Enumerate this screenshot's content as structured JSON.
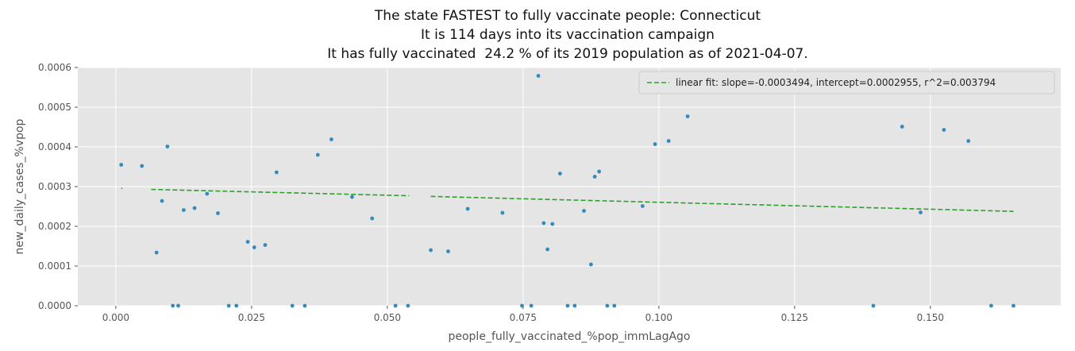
{
  "chart_data": {
    "type": "scatter",
    "title_lines": [
      "The state FASTEST to fully vaccinate people: Connecticut",
      "It is 114 days into its vaccination campaign",
      "It has fully vaccinated  24.2 % of its 2019 population as of 2021-04-07."
    ],
    "xlabel": "people_fully_vaccinated_%pop_immLagAgo",
    "ylabel": "new_daily_cases_%vpop",
    "xlim": [
      -0.007,
      0.174
    ],
    "ylim": [
      0,
      0.0006
    ],
    "xticks": [
      0.0,
      0.025,
      0.05,
      0.075,
      0.1,
      0.125,
      0.15
    ],
    "xtick_labels": [
      "0.000",
      "0.025",
      "0.050",
      "0.075",
      "0.100",
      "0.125",
      "0.150"
    ],
    "yticks": [
      0,
      0.0001,
      0.0002,
      0.0003,
      0.0004,
      0.0005,
      0.0006
    ],
    "ytick_labels": [
      "0.0000",
      "0.0001",
      "0.0002",
      "0.0003",
      "0.0004",
      "0.0005",
      "0.0006"
    ],
    "grid": true,
    "legend_position": "top-right",
    "colors": {
      "points": "#348abd",
      "fit": "#2ca02c",
      "plot_bg": "#e5e5e5",
      "grid": "#ffffff"
    },
    "series": [
      {
        "type": "scatter",
        "x": [
          0.001,
          0.0048,
          0.0075,
          0.0085,
          0.0095,
          0.0105,
          0.0115,
          0.0125,
          0.0145,
          0.0168,
          0.0188,
          0.0208,
          0.0222,
          0.0243,
          0.0255,
          0.0275,
          0.0296,
          0.0325,
          0.0348,
          0.0372,
          0.0397,
          0.0435,
          0.0472,
          0.0515,
          0.0538,
          0.058,
          0.0612,
          0.0648,
          0.0712,
          0.0748,
          0.0765,
          0.0778,
          0.0788,
          0.0795,
          0.0804,
          0.0818,
          0.0832,
          0.0845,
          0.0862,
          0.0875,
          0.0882,
          0.089,
          0.0905,
          0.0918,
          0.097,
          0.0993,
          0.1018,
          0.1053,
          0.1395,
          0.1448,
          0.1482,
          0.1525,
          0.157,
          0.1612,
          0.1653
        ],
        "y": [
          0.000355,
          0.000352,
          0.000134,
          0.000264,
          0.000401,
          0,
          0,
          0.000241,
          0.000246,
          0.000282,
          0.000233,
          0,
          0,
          0.000161,
          0.000147,
          0.000153,
          0.000336,
          0,
          0,
          0.00038,
          0.000419,
          0.000274,
          0.00022,
          0,
          0,
          0.00014,
          0.000137,
          0.000244,
          0.000234,
          0,
          0,
          0.000579,
          0.000208,
          0.000142,
          0.000206,
          0.000333,
          0,
          0,
          0.000239,
          0.000104,
          0.000325,
          0.000338,
          0,
          0,
          0.000251,
          0.000407,
          0.000415,
          0.000477,
          0,
          0.000451,
          0.000235,
          0.000443,
          0.000415,
          0,
          0
        ]
      },
      {
        "type": "line",
        "name": "linear fit: slope=-0.0003494, intercept=0.0002955, r^2=0.003794",
        "x": [
          0.001,
          0.0065,
          0.054,
          0.058,
          0.1653
        ],
        "y": [
          0.0002955,
          0.000293,
          0.000277,
          0.0002753,
          0.0002377
        ],
        "gaps_after_index": [
          0,
          2
        ]
      }
    ]
  }
}
